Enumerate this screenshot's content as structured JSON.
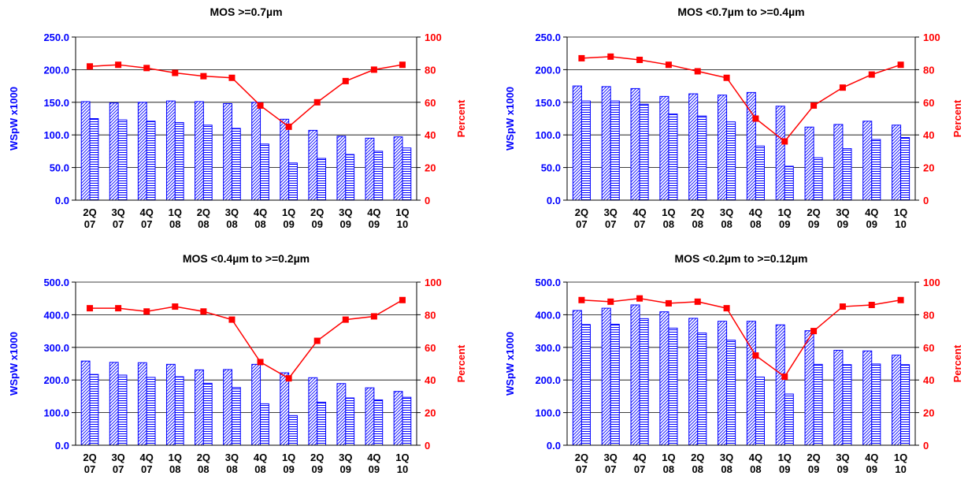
{
  "colors": {
    "bar_stroke": "#0000ff",
    "bar_hatch": "#0000ff",
    "line": "#ff0000",
    "left_axis_text": "#0000ff",
    "right_axis_text": "#ff0000",
    "grid": "#000000"
  },
  "chart_data": [
    {
      "type": "bar+line",
      "title": "MOS >=0.7µm",
      "ylabel": "WSpW x1000",
      "y2label": "Percent",
      "categories": [
        "2Q\n07",
        "3Q\n07",
        "4Q\n07",
        "1Q\n08",
        "2Q\n08",
        "3Q\n08",
        "4Q\n08",
        "1Q\n09",
        "2Q\n09",
        "3Q\n09",
        "4Q\n09",
        "1Q\n10"
      ],
      "ylim": [
        0,
        250
      ],
      "yticks": [
        "0.0",
        "50.0",
        "100.0",
        "150.0",
        "200.0",
        "250.0"
      ],
      "y2lim": [
        0,
        100
      ],
      "y2ticks": [
        "0",
        "20",
        "40",
        "60",
        "80",
        "100"
      ],
      "series": [
        {
          "kind": "bar",
          "pattern": "diagonal",
          "values": [
            151,
            149,
            150,
            152,
            151,
            148,
            150,
            124,
            107,
            98,
            95,
            97
          ]
        },
        {
          "kind": "bar",
          "pattern": "horizontal",
          "values": [
            125,
            123,
            121,
            119,
            115,
            110,
            86,
            57,
            64,
            70,
            75,
            80
          ]
        },
        {
          "kind": "line",
          "axis": "right",
          "values": [
            82,
            83,
            81,
            78,
            76,
            75,
            58,
            45,
            60,
            73,
            80,
            83
          ]
        }
      ],
      "grid": true
    },
    {
      "type": "bar+line",
      "title": "MOS <0.7µm to >=0.4µm",
      "ylabel": "WSpW x1000",
      "y2label": "Percent",
      "categories": [
        "2Q\n07",
        "3Q\n07",
        "4Q\n07",
        "1Q\n08",
        "2Q\n08",
        "3Q\n08",
        "4Q\n08",
        "1Q\n09",
        "2Q\n09",
        "3Q\n09",
        "4Q\n09",
        "1Q\n10"
      ],
      "ylim": [
        0,
        250
      ],
      "yticks": [
        "0.0",
        "50.0",
        "100.0",
        "150.0",
        "200.0",
        "250.0"
      ],
      "y2lim": [
        0,
        100
      ],
      "y2ticks": [
        "0",
        "20",
        "40",
        "60",
        "80",
        "100"
      ],
      "series": [
        {
          "kind": "bar",
          "pattern": "diagonal",
          "values": [
            175,
            174,
            171,
            159,
            163,
            161,
            165,
            144,
            112,
            116,
            121,
            115
          ]
        },
        {
          "kind": "bar",
          "pattern": "horizontal",
          "values": [
            152,
            152,
            147,
            132,
            129,
            120,
            83,
            52,
            65,
            79,
            93,
            96
          ]
        },
        {
          "kind": "line",
          "axis": "right",
          "values": [
            87,
            88,
            86,
            83,
            79,
            75,
            50,
            36,
            58,
            69,
            77,
            83
          ]
        }
      ],
      "grid": true
    },
    {
      "type": "bar+line",
      "title": "MOS <0.4µm to >=0.2µm",
      "ylabel": "WSpW x1000",
      "y2label": "Percent",
      "categories": [
        "2Q\n07",
        "3Q\n07",
        "4Q\n07",
        "1Q\n08",
        "2Q\n08",
        "3Q\n08",
        "4Q\n08",
        "1Q\n09",
        "2Q\n09",
        "3Q\n09",
        "4Q\n09",
        "1Q\n10"
      ],
      "ylim": [
        0,
        500
      ],
      "yticks": [
        "0.0",
        "100.0",
        "200.0",
        "300.0",
        "400.0",
        "500.0"
      ],
      "y2lim": [
        0,
        100
      ],
      "y2ticks": [
        "0",
        "20",
        "40",
        "60",
        "80",
        "100"
      ],
      "series": [
        {
          "kind": "bar",
          "pattern": "diagonal",
          "values": [
            258,
            254,
            253,
            248,
            231,
            232,
            248,
            222,
            207,
            189,
            176,
            165
          ]
        },
        {
          "kind": "bar",
          "pattern": "horizontal",
          "values": [
            217,
            215,
            208,
            210,
            190,
            177,
            127,
            91,
            132,
            145,
            139,
            147
          ]
        },
        {
          "kind": "line",
          "axis": "right",
          "values": [
            84,
            84,
            82,
            85,
            82,
            77,
            51,
            41,
            64,
            77,
            79,
            89
          ]
        }
      ],
      "grid": true
    },
    {
      "type": "bar+line",
      "title": "MOS <0.2µm to >=0.12µm",
      "ylabel": "WSpW x1000",
      "y2label": "Percent",
      "categories": [
        "2Q\n07",
        "3Q\n07",
        "4Q\n07",
        "1Q\n08",
        "2Q\n08",
        "3Q\n08",
        "4Q\n08",
        "1Q\n09",
        "2Q\n09",
        "3Q\n09",
        "4Q\n09",
        "1Q\n10"
      ],
      "ylim": [
        0,
        500
      ],
      "yticks": [
        "0.0",
        "100.0",
        "200.0",
        "300.0",
        "400.0",
        "500.0"
      ],
      "y2lim": [
        0,
        100
      ],
      "y2ticks": [
        "0",
        "20",
        "40",
        "60",
        "80",
        "100"
      ],
      "series": [
        {
          "kind": "bar",
          "pattern": "diagonal",
          "values": [
            413,
            420,
            430,
            409,
            389,
            380,
            380,
            369,
            351,
            291,
            289,
            276
          ]
        },
        {
          "kind": "bar",
          "pattern": "horizontal",
          "values": [
            370,
            371,
            388,
            359,
            344,
            322,
            209,
            157,
            248,
            247,
            249,
            247
          ]
        },
        {
          "kind": "line",
          "axis": "right",
          "values": [
            89,
            88,
            90,
            87,
            88,
            84,
            55,
            42,
            70,
            85,
            86,
            89
          ]
        }
      ],
      "grid": true
    }
  ]
}
